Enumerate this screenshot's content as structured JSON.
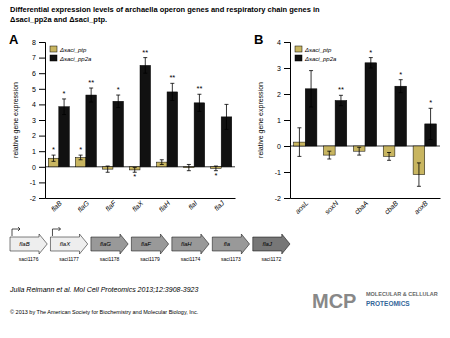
{
  "title": [
    "Differential expression levels of archaella operon genes and respiratory chain genes in",
    "Δsaci_pp2a and Δsaci_ptp."
  ],
  "chart_data": [
    {
      "type": "bar",
      "title": "A",
      "ylabel": "relative gene expression",
      "categories": [
        "flaB",
        "flaG",
        "flaF",
        "flaX",
        "flaH",
        "flaI",
        "flaJ"
      ],
      "series": [
        {
          "name": "Δsaci_ptp",
          "color": "#c8b560",
          "values": [
            0.55,
            0.6,
            -0.15,
            -0.2,
            0.3,
            -0.05,
            -0.1
          ],
          "errors": [
            0.2,
            0.15,
            0.2,
            0.15,
            0.15,
            0.2,
            0.15
          ],
          "stars": [
            "*",
            "*",
            null,
            "*",
            null,
            null,
            "*"
          ]
        },
        {
          "name": "Δsaci_pp2a",
          "color": "#111111",
          "values": [
            3.85,
            4.6,
            4.2,
            6.5,
            4.8,
            4.1,
            3.2
          ],
          "errors": [
            0.5,
            0.45,
            0.4,
            0.5,
            0.55,
            0.55,
            0.8
          ],
          "stars": [
            "*",
            "**",
            "*",
            "**",
            "**",
            "**",
            null
          ]
        }
      ],
      "ylim": [
        -2,
        8
      ],
      "yticks": [
        -2,
        -1,
        0,
        1,
        2,
        3,
        4,
        5,
        6,
        7,
        8
      ],
      "grid": false,
      "legend": "upper left"
    },
    {
      "type": "bar",
      "title": "B",
      "ylabel": "relative gene expression",
      "categories": [
        "aosL",
        "soxN",
        "cbaA",
        "cbaB",
        "aoxB"
      ],
      "series": [
        {
          "name": "Δsaci_ptp",
          "color": "#c8b560",
          "values": [
            0.15,
            -0.35,
            -0.2,
            -0.4,
            -1.1
          ],
          "errors": [
            0.55,
            0.15,
            0.15,
            0.15,
            0.45
          ]
        },
        {
          "name": "Δsaci_pp2a",
          "color": "#111111",
          "values": [
            2.2,
            1.75,
            3.2,
            2.3,
            0.85
          ],
          "errors": [
            0.7,
            0.2,
            0.2,
            0.25,
            0.6
          ],
          "stars": [
            null,
            "**",
            "*",
            "*",
            "*"
          ]
        }
      ],
      "ylim": [
        -2,
        4
      ],
      "yticks": [
        -2,
        -1,
        0,
        1,
        2,
        3,
        4
      ],
      "grid": false,
      "legend": "upper left"
    }
  ],
  "diagram": {
    "genes": [
      {
        "label": "flaB",
        "locus": "saci1176",
        "color": "#eeeeee"
      },
      {
        "label": "flaX",
        "locus": "saci1177",
        "color": "#eeeeee"
      },
      {
        "label": "flaG",
        "locus": "saci1178",
        "color": "#999999"
      },
      {
        "label": "flaF",
        "locus": "saci1179",
        "color": "#999999"
      },
      {
        "label": "flaH",
        "locus": "saci1174",
        "color": "#999999"
      },
      {
        "label": "fla",
        "locus": "saci1173",
        "color": "#999999"
      },
      {
        "label": "flaJ",
        "locus": "saci1172",
        "color": "#777777"
      }
    ]
  },
  "footer": "Julia Reimann et al. Mol Cell Proteomics 2013;12:3908-3923",
  "copyright": "© 2013 by The American Society for Biochemistry and Molecular Biology, Inc.",
  "logo": [
    "MCP",
    "MOLECULAR & CELLULAR",
    "PROTEOMICS"
  ]
}
